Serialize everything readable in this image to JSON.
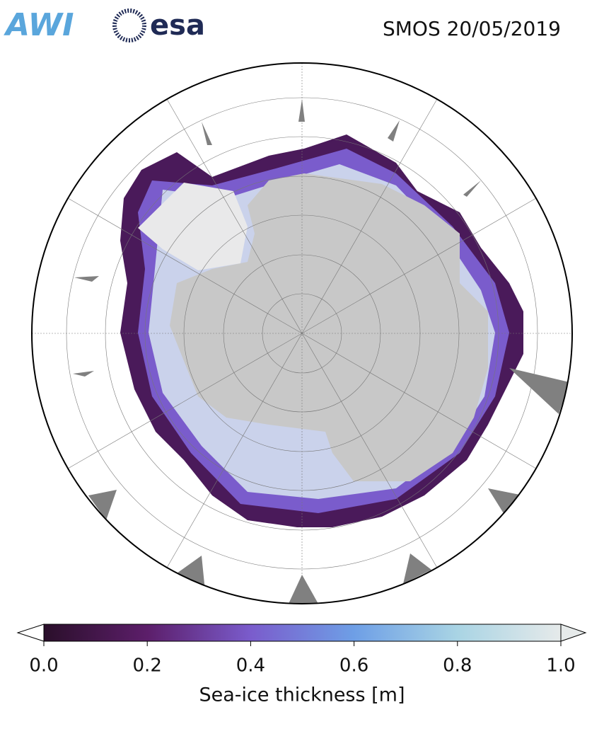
{
  "header": {
    "logos": [
      "AWI",
      "esa"
    ],
    "title": "SMOS 20/05/2019"
  },
  "colorbar": {
    "label": "Sea-ice thickness [m]",
    "xlim": [
      0,
      1
    ],
    "ticks": [
      {
        "value": 0,
        "label": "0.0"
      },
      0.2,
      0.4,
      0.6,
      0.8,
      {
        "value": 1,
        "label": "1.0"
      }
    ],
    "colors": [
      "#2a0f2a",
      "#5c1e6a",
      "#7a5ccc",
      "#6e9fe6",
      "#a9d4e4",
      "#e6eaea"
    ],
    "under_color": "#ffffff",
    "over_color": "#e6eaea"
  }
}
